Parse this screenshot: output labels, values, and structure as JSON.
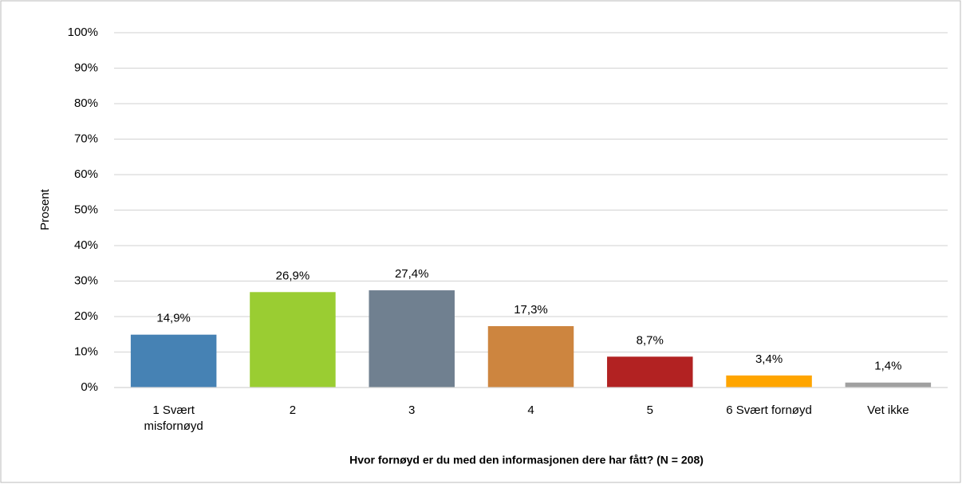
{
  "chart_data": {
    "type": "bar",
    "x_label": "Hvor fornøyd er du med den informasjonen dere har fått? (N = 208)",
    "y_label": "Prosent",
    "categories": [
      "1 Svært misfornøyd",
      "2",
      "3",
      "4",
      "5",
      "6 Svært fornøyd",
      "Vet ikke"
    ],
    "values": [
      14.9,
      26.9,
      27.4,
      17.3,
      8.7,
      3.4,
      1.4
    ],
    "value_labels": [
      "14,9%",
      "26,9%",
      "27,4%",
      "17,3%",
      "8,7%",
      "3,4%",
      "1,4%"
    ],
    "colors": [
      "#4682b4",
      "#9acd32",
      "#708090",
      "#cd853f",
      "#b22222",
      "#ffa500",
      "#a0a0a0"
    ],
    "ylim": [
      0,
      100
    ],
    "yticks": [
      {
        "value": 0,
        "label": "0%"
      },
      {
        "value": 10,
        "label": "10%"
      },
      {
        "value": 20,
        "label": "20%"
      },
      {
        "value": 30,
        "label": "30%"
      },
      {
        "value": 40,
        "label": "40%"
      },
      {
        "value": 50,
        "label": "50%"
      },
      {
        "value": 60,
        "label": "60%"
      },
      {
        "value": 70,
        "label": "70%"
      },
      {
        "value": 80,
        "label": "80%"
      },
      {
        "value": 90,
        "label": "90%"
      },
      {
        "value": 100,
        "label": "100%"
      }
    ],
    "grid": true
  }
}
